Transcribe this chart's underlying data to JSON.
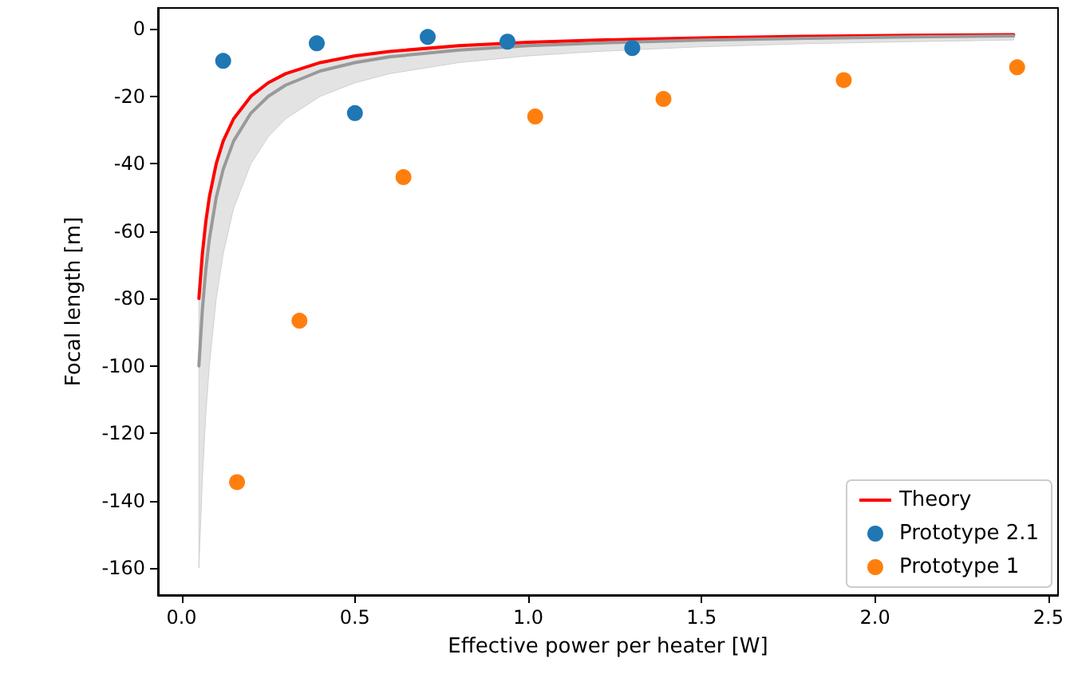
{
  "chart_data": {
    "type": "scatter",
    "xlabel": "Effective power per heater [W]",
    "ylabel": "Focal length [m]",
    "xlim": [
      -0.068,
      2.528
    ],
    "xticks": [
      {
        "value": 0,
        "label": "0.0"
      },
      0.5,
      {
        "value": 1,
        "label": "1.0"
      },
      1.5,
      {
        "value": 2,
        "label": "2.0"
      },
      2.5
    ],
    "ylim": [
      -168,
      6.2
    ],
    "yticks": [
      -160,
      -140,
      -120,
      -100,
      -80,
      -60,
      -40,
      -20,
      0
    ],
    "grid": false,
    "legend": "bottom right",
    "marker": "circle",
    "series": [
      {
        "type": "line",
        "name": "Theory",
        "color": "#ff0000",
        "marker": "none",
        "line_style": "solid",
        "x": [
          0.05,
          0.06,
          0.07,
          0.08,
          0.1,
          0.12,
          0.15,
          0.2,
          0.25,
          0.3,
          0.4,
          0.5,
          0.6,
          0.8,
          1.0,
          1.2,
          1.5,
          1.8,
          2.1,
          2.4
        ],
        "values": [
          -80,
          -66.7,
          -57.1,
          -50,
          -40,
          -33.3,
          -26.7,
          -20,
          -16,
          -13.3,
          -10,
          -8,
          -6.7,
          -5,
          -4,
          -3.3,
          -2.7,
          -2.2,
          -1.9,
          -1.7
        ]
      },
      {
        "type": "line",
        "color": "#999999",
        "marker": "none",
        "line_style": "solid",
        "x": [
          0.05,
          0.06,
          0.07,
          0.08,
          0.1,
          0.12,
          0.15,
          0.2,
          0.25,
          0.3,
          0.4,
          0.5,
          0.6,
          0.8,
          1.0,
          1.2,
          1.5,
          1.8,
          2.1,
          2.4
        ],
        "values": [
          -100,
          -83.3,
          -71.4,
          -62.5,
          -50,
          -41.7,
          -33.3,
          -25,
          -20,
          -16.7,
          -12.5,
          -10,
          -8.3,
          -6.3,
          -5,
          -4.2,
          -3.3,
          -2.8,
          -2.4,
          -2.1
        ],
        "lower": [
          -160,
          -133.3,
          -114.3,
          -100,
          -80,
          -66.7,
          -53.3,
          -40,
          -32,
          -26.7,
          -20,
          -16,
          -13.3,
          -10,
          -8,
          -6.7,
          -5.3,
          -4.4,
          -3.8,
          -3.3
        ],
        "upper": [
          -80,
          -66.7,
          -57.1,
          -50,
          -40,
          -33.3,
          -26.7,
          -20,
          -16,
          -13.3,
          -10,
          -8,
          -6.7,
          -5,
          -4,
          -3.3,
          -2.7,
          -2.2,
          -1.9,
          -1.7
        ]
      },
      {
        "name": "Prototype 2.1",
        "color": "#1f77b4",
        "x": [
          0.12,
          0.39,
          0.5,
          0.71,
          0.94,
          1.3
        ],
        "values": [
          -9.5,
          -4.3,
          -25,
          -2.4,
          -3.8,
          -5.7
        ]
      },
      {
        "name": "Prototype 1",
        "color": "#ff7f0e",
        "x": [
          0.16,
          0.34,
          0.64,
          1.02,
          1.39,
          1.91,
          2.41
        ],
        "values": [
          -134.5,
          -86.6,
          -44,
          -26,
          -20.8,
          -15.2,
          -11.4
        ]
      }
    ]
  }
}
